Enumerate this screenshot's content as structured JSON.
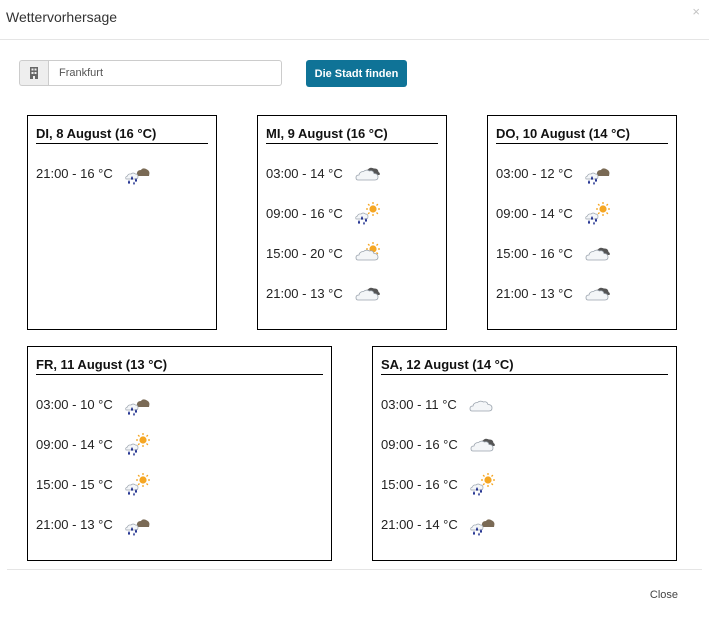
{
  "dialog": {
    "title": "Wettervorhersage",
    "close_x": "×",
    "close_label": "Close"
  },
  "search": {
    "value": "Frankfurt",
    "button_label": "Die Stadt finden"
  },
  "days": [
    {
      "title": "DI, 8 August (16 °C)",
      "entries": [
        {
          "text": "21:00 - 16 °C",
          "icon": "rain-clouds-icon"
        }
      ]
    },
    {
      "title": "MI, 9 August (16 °C)",
      "entries": [
        {
          "text": "03:00 - 14 °C",
          "icon": "cloudy-icon"
        },
        {
          "text": "09:00 - 16 °C",
          "icon": "sun-rain-icon"
        },
        {
          "text": "15:00 - 20 °C",
          "icon": "sun-cloud-icon"
        },
        {
          "text": "21:00 - 13 °C",
          "icon": "cloudy-icon"
        }
      ]
    },
    {
      "title": "DO, 10 August (14 °C)",
      "entries": [
        {
          "text": "03:00 - 12 °C",
          "icon": "rain-clouds-icon"
        },
        {
          "text": "09:00 - 14 °C",
          "icon": "sun-rain-icon"
        },
        {
          "text": "15:00 - 16 °C",
          "icon": "cloudy-icon"
        },
        {
          "text": "21:00 - 13 °C",
          "icon": "cloudy-icon"
        }
      ]
    },
    {
      "title": "FR, 11 August (13 °C)",
      "entries": [
        {
          "text": "03:00 - 10 °C",
          "icon": "rain-clouds-icon"
        },
        {
          "text": "09:00 - 14 °C",
          "icon": "sun-rain-icon"
        },
        {
          "text": "15:00 - 15 °C",
          "icon": "sun-rain-icon"
        },
        {
          "text": "21:00 - 13 °C",
          "icon": "rain-clouds-icon"
        }
      ]
    },
    {
      "title": "SA, 12 August (14 °C)",
      "entries": [
        {
          "text": "03:00 - 11 °C",
          "icon": "cloud-icon"
        },
        {
          "text": "09:00 - 16 °C",
          "icon": "cloudy-icon"
        },
        {
          "text": "15:00 - 16 °C",
          "icon": "sun-rain-icon"
        },
        {
          "text": "21:00 - 14 °C",
          "icon": "rain-clouds-icon"
        }
      ]
    }
  ],
  "colors": {
    "button": "#0f7397",
    "rain": "#1a2a8c",
    "sun": "#f5a623",
    "dark_cloud": "#555555"
  }
}
